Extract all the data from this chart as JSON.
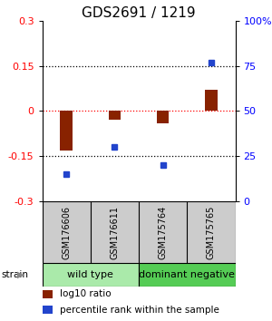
{
  "title": "GDS2691 / 1219",
  "samples": [
    "GSM176606",
    "GSM176611",
    "GSM175764",
    "GSM175765"
  ],
  "log10_ratio": [
    -0.13,
    -0.03,
    -0.04,
    0.07
  ],
  "percentile_rank": [
    15,
    30,
    20,
    77
  ],
  "groups": [
    {
      "label": "wild type",
      "samples": [
        0,
        1
      ],
      "color": "#aaeaaa"
    },
    {
      "label": "dominant negative",
      "samples": [
        2,
        3
      ],
      "color": "#55cc55"
    }
  ],
  "ylim_left": [
    -0.3,
    0.3
  ],
  "ylim_right": [
    0,
    100
  ],
  "yticks_left": [
    -0.3,
    -0.15,
    0,
    0.15,
    0.3
  ],
  "yticks_right": [
    0,
    25,
    50,
    75,
    100
  ],
  "ytick_labels_right": [
    "0",
    "25",
    "50",
    "75",
    "100%"
  ],
  "hlines_black": [
    -0.15,
    0.15
  ],
  "hline_red": 0.0,
  "bar_color": "#882200",
  "dot_color": "#2244cc",
  "title_fontsize": 11,
  "axis_fontsize": 8,
  "label_fontsize": 7.5,
  "group_label_fontsize": 8,
  "sample_fontsize": 7,
  "bar_width": 0.25
}
